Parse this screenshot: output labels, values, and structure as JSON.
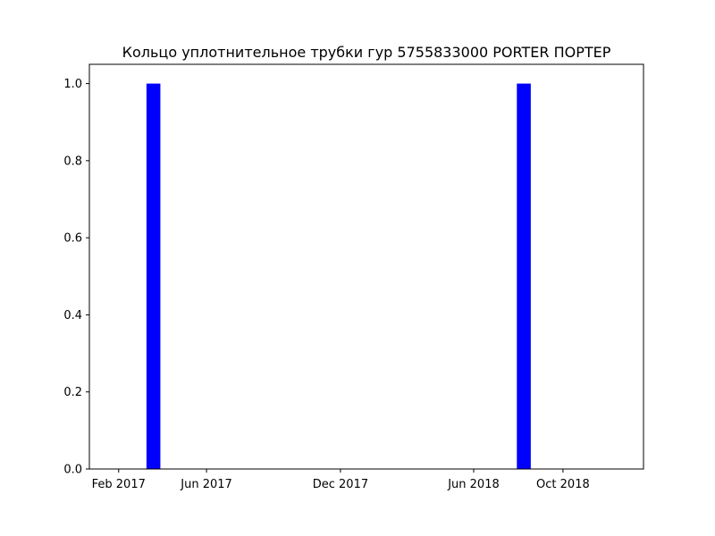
{
  "chart_data": {
    "type": "bar",
    "title": "Кольцо уплотнительное трубки гур 5755833000 PORTER ПОРТЕР",
    "xlabel": "",
    "ylabel": "",
    "x_axis_type": "date",
    "xlim": [
      "2016-12-23",
      "2019-01-19"
    ],
    "ylim": [
      0,
      1.05
    ],
    "grid": false,
    "x_ticks": [
      {
        "date": "2017-02-01",
        "label": "Feb 2017"
      },
      {
        "date": "2017-06-01",
        "label": "Jun 2017"
      },
      {
        "date": "2017-12-01",
        "label": "Dec 2017"
      },
      {
        "date": "2018-06-01",
        "label": "Jun 2018"
      },
      {
        "date": "2018-10-01",
        "label": "Oct 2018"
      }
    ],
    "y_ticks": [
      {
        "value": 0.0,
        "label": "0.0"
      },
      {
        "value": 0.2,
        "label": "0.2"
      },
      {
        "value": 0.4,
        "label": "0.4"
      },
      {
        "value": 0.6,
        "label": "0.6"
      },
      {
        "value": 0.8,
        "label": "0.8"
      },
      {
        "value": 1.0,
        "label": "1.0"
      }
    ],
    "series": [
      {
        "color": "#0000ff",
        "points": [
          {
            "x_start": "2017-03-11",
            "x_end": "2017-03-30",
            "value": 1
          },
          {
            "x_start": "2018-07-30",
            "x_end": "2018-08-18",
            "value": 1
          }
        ]
      }
    ]
  }
}
